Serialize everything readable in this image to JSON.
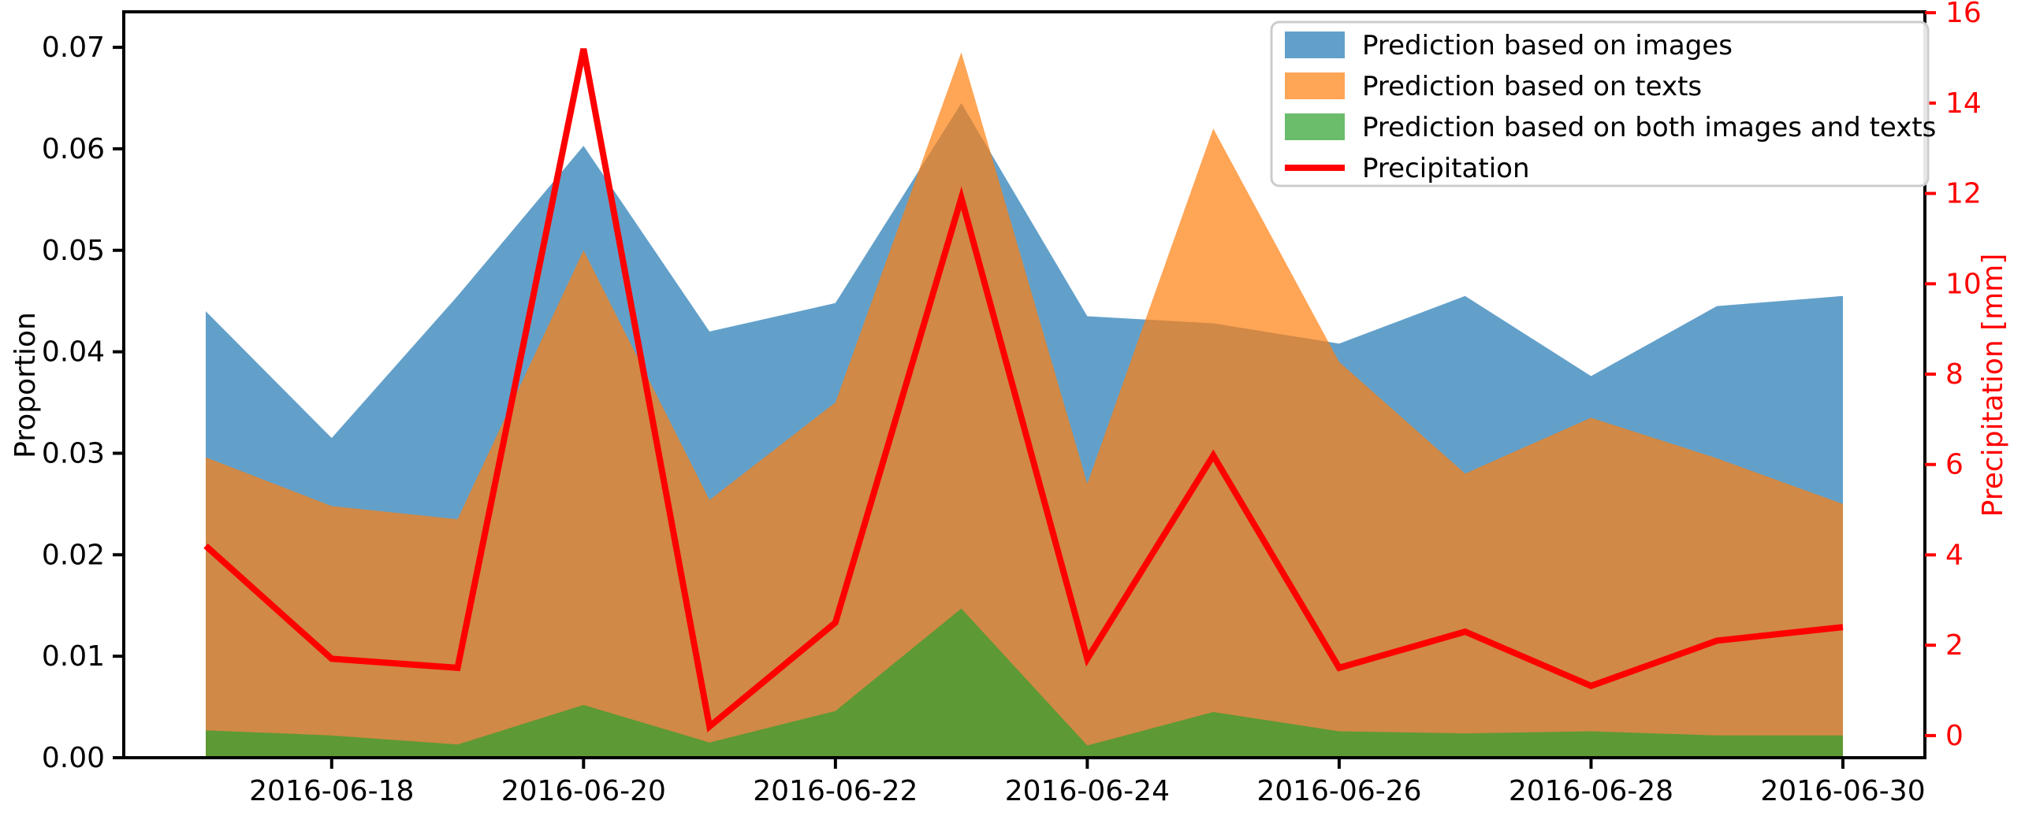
{
  "chart_data": {
    "type": "area",
    "x": [
      "2016-06-17",
      "2016-06-18",
      "2016-06-19",
      "2016-06-20",
      "2016-06-21",
      "2016-06-22",
      "2016-06-23",
      "2016-06-24",
      "2016-06-25",
      "2016-06-26",
      "2016-06-27",
      "2016-06-28",
      "2016-06-29",
      "2016-06-30"
    ],
    "series": [
      {
        "name": "Prediction based on images",
        "color": "#1f77b4",
        "opacity": 0.7,
        "axis": "left",
        "values": [
          0.044,
          0.0315,
          0.0455,
          0.0603,
          0.042,
          0.0448,
          0.0645,
          0.0435,
          0.0428,
          0.0408,
          0.0455,
          0.0376,
          0.0445,
          0.0455
        ]
      },
      {
        "name": "Prediction based on texts",
        "color": "#ff7f0e",
        "opacity": 0.7,
        "axis": "left",
        "values": [
          0.0296,
          0.0248,
          0.0235,
          0.05,
          0.0254,
          0.035,
          0.0695,
          0.027,
          0.062,
          0.039,
          0.028,
          0.0335,
          0.0295,
          0.025
        ]
      },
      {
        "name": "Prediction based on both images and texts",
        "color": "#2ca02c",
        "opacity": 0.7,
        "axis": "left",
        "values": [
          0.0027,
          0.0022,
          0.0013,
          0.0052,
          0.0015,
          0.0046,
          0.0147,
          0.0012,
          0.0045,
          0.0026,
          0.0024,
          0.0026,
          0.0022,
          0.0022
        ]
      }
    ],
    "line": {
      "name": "Precipitation",
      "color": "#ff0000",
      "axis": "right",
      "values": [
        4.2,
        1.7,
        1.5,
        15.2,
        0.2,
        2.5,
        11.9,
        1.7,
        6.2,
        1.5,
        2.3,
        1.1,
        2.1,
        2.4
      ]
    },
    "ylabel_left": "Proportion",
    "ylabel_right": "Precipitation [mm]",
    "ylim_left": [
      0,
      0.0735
    ],
    "ylim_right": [
      -0.49,
      16.02
    ],
    "yticks_left": [
      "0.00",
      "0.01",
      "0.02",
      "0.03",
      "0.04",
      "0.05",
      "0.06",
      "0.07"
    ],
    "yticks_right": [
      "0",
      "2",
      "4",
      "6",
      "8",
      "10",
      "12",
      "14",
      "16"
    ],
    "xtick_labels": [
      "2016-06-18",
      "2016-06-20",
      "2016-06-22",
      "2016-06-24",
      "2016-06-26",
      "2016-06-28",
      "2016-06-30"
    ],
    "legend_position": "upper right",
    "grid": false,
    "axis_color": "#000000",
    "right_axis_color": "#ff0000",
    "legend_border_color": "#cccccc"
  }
}
